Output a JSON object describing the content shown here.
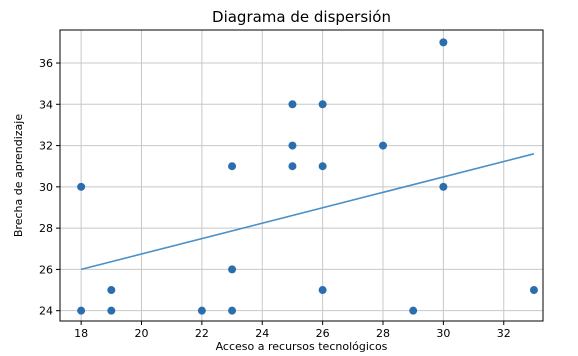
{
  "chart_data": {
    "type": "scatter",
    "title": "Diagrama de dispersión",
    "xlabel": "Acceso a recursos tecnológicos",
    "ylabel": "Brecha de aprendizaje",
    "xlim": [
      17.3,
      33.3
    ],
    "ylim": [
      23.5,
      37.6
    ],
    "xticks": [
      18,
      20,
      22,
      24,
      26,
      28,
      30,
      32
    ],
    "yticks": [
      24,
      26,
      28,
      30,
      32,
      34,
      36
    ],
    "grid": true,
    "series": [
      {
        "points": [
          {
            "x": 18,
            "y": 30
          },
          {
            "x": 18,
            "y": 24
          },
          {
            "x": 19,
            "y": 25
          },
          {
            "x": 19,
            "y": 24
          },
          {
            "x": 22,
            "y": 24
          },
          {
            "x": 23,
            "y": 31
          },
          {
            "x": 23,
            "y": 26
          },
          {
            "x": 23,
            "y": 24
          },
          {
            "x": 25,
            "y": 34
          },
          {
            "x": 25,
            "y": 32
          },
          {
            "x": 25,
            "y": 31
          },
          {
            "x": 26,
            "y": 34
          },
          {
            "x": 26,
            "y": 31
          },
          {
            "x": 26,
            "y": 25
          },
          {
            "x": 28,
            "y": 32
          },
          {
            "x": 29,
            "y": 24
          },
          {
            "x": 30,
            "y": 37
          },
          {
            "x": 30,
            "y": 30
          },
          {
            "x": 33,
            "y": 25
          }
        ],
        "trendline": {
          "x": [
            18,
            33
          ],
          "y": [
            26.0,
            31.6
          ]
        }
      }
    ],
    "colors": {
      "points": "#2a6ead",
      "line": "#4a90c8",
      "grid": "#c8c8c8",
      "axes": "#000000"
    }
  }
}
